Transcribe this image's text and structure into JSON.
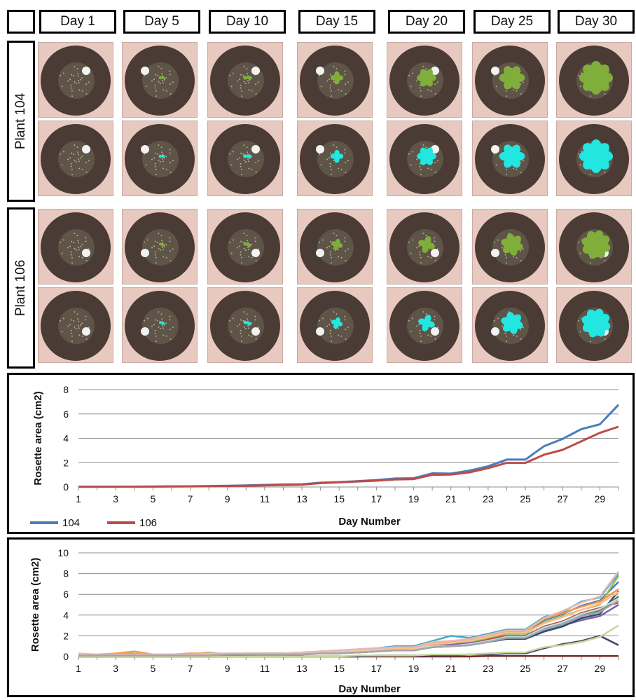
{
  "grid": {
    "days": [
      "Day 1",
      "Day 5",
      "Day 10",
      "Day 15",
      "Day 20",
      "Day 25",
      "Day 30"
    ],
    "plants": [
      {
        "label": "Plant 104"
      },
      {
        "label": "Plant 106"
      }
    ],
    "growth": [
      0.0,
      0.04,
      0.12,
      0.28,
      0.5,
      0.72,
      1.0
    ],
    "rgb_color": "#7fae3a",
    "fluor_color": "#22e6e0"
  },
  "chart_data": [
    {
      "type": "line",
      "xlabel": "Day Number",
      "ylabel": "Rosette area (cm2)",
      "ylim": [
        0,
        8
      ],
      "yticks": [
        0,
        2,
        4,
        6,
        8
      ],
      "xticks": [
        1,
        3,
        5,
        7,
        9,
        11,
        13,
        15,
        17,
        19,
        21,
        23,
        25,
        27,
        29
      ],
      "x": [
        1,
        2,
        3,
        4,
        5,
        6,
        7,
        8,
        9,
        10,
        11,
        12,
        13,
        14,
        15,
        16,
        17,
        18,
        19,
        20,
        21,
        22,
        23,
        24,
        25,
        26,
        27,
        28,
        29,
        30
      ],
      "series": [
        {
          "name": "104",
          "color": "#4a7ebb",
          "values": [
            0.02,
            0.02,
            0.03,
            0.03,
            0.04,
            0.05,
            0.06,
            0.08,
            0.1,
            0.13,
            0.17,
            0.21,
            0.22,
            0.35,
            0.4,
            0.48,
            0.57,
            0.7,
            0.72,
            1.12,
            1.1,
            1.35,
            1.7,
            2.25,
            2.25,
            3.35,
            3.95,
            4.75,
            5.15,
            6.75
          ]
        },
        {
          "name": "106",
          "color": "#be4b48",
          "values": [
            0.02,
            0.02,
            0.02,
            0.03,
            0.03,
            0.04,
            0.05,
            0.06,
            0.08,
            0.1,
            0.13,
            0.16,
            0.19,
            0.32,
            0.38,
            0.45,
            0.52,
            0.62,
            0.65,
            1.0,
            1.02,
            1.2,
            1.55,
            1.98,
            1.98,
            2.65,
            3.05,
            3.75,
            4.45,
            4.95
          ]
        }
      ],
      "legend": "bottom-left"
    },
    {
      "type": "line",
      "xlabel": "Day Number",
      "ylabel": "Rosette area (cm2)",
      "ylim": [
        0,
        10
      ],
      "yticks": [
        0,
        2,
        4,
        6,
        8,
        10
      ],
      "xticks": [
        1,
        3,
        5,
        7,
        9,
        11,
        13,
        15,
        17,
        19,
        21,
        23,
        25,
        27,
        29
      ],
      "x": [
        1,
        2,
        3,
        4,
        5,
        6,
        7,
        8,
        9,
        10,
        11,
        12,
        13,
        14,
        15,
        16,
        17,
        18,
        19,
        20,
        21,
        22,
        23,
        24,
        25,
        26,
        27,
        28,
        29,
        30
      ],
      "series": [
        {
          "color": "#4a7ebb",
          "values": [
            0.3,
            0.1,
            0.2,
            0.1,
            0.1,
            0.1,
            0.15,
            0.2,
            0.15,
            0.2,
            0.25,
            0.3,
            0.3,
            0.4,
            0.45,
            0.55,
            0.7,
            0.85,
            0.9,
            1.3,
            1.5,
            1.6,
            1.9,
            2.3,
            2.3,
            3.5,
            4.1,
            4.9,
            5.4,
            7.2
          ]
        },
        {
          "color": "#be4b48",
          "values": [
            0.1,
            0.05,
            0.1,
            0.05,
            0.05,
            0.1,
            0.1,
            0.1,
            0.15,
            0.15,
            0.2,
            0.2,
            0.25,
            0.35,
            0.4,
            0.5,
            0.6,
            0.7,
            0.75,
            1.1,
            1.2,
            1.3,
            1.7,
            2.0,
            2.0,
            2.9,
            3.4,
            4.2,
            4.7,
            5.2
          ]
        },
        {
          "color": "#98b954",
          "values": [
            0.0,
            0.1,
            0.2,
            0.3,
            0.1,
            0.15,
            0.2,
            0.4,
            0.2,
            0.2,
            0.2,
            0.2,
            0.3,
            0.3,
            0.4,
            0.5,
            0.6,
            0.7,
            0.8,
            1.0,
            1.1,
            1.4,
            1.8,
            2.2,
            2.2,
            3.3,
            3.9,
            4.5,
            5.0,
            7.8
          ]
        },
        {
          "color": "#7d60a0",
          "values": [
            0.1,
            0.1,
            0.1,
            0.1,
            0.1,
            0.1,
            0.2,
            0.2,
            0.2,
            0.3,
            0.3,
            0.3,
            0.3,
            0.4,
            0.5,
            0.6,
            0.7,
            0.8,
            0.9,
            1.2,
            1.2,
            1.3,
            1.5,
            1.8,
            1.8,
            2.5,
            3.0,
            3.5,
            3.9,
            5.0
          ]
        },
        {
          "color": "#46aac5",
          "values": [
            0.2,
            0.1,
            0.2,
            0.1,
            0.1,
            0.2,
            0.2,
            0.2,
            0.2,
            0.3,
            0.3,
            0.3,
            0.3,
            0.5,
            0.6,
            0.7,
            0.8,
            1.0,
            1.0,
            1.5,
            2.0,
            1.8,
            2.2,
            2.6,
            2.6,
            3.8,
            4.3,
            5.3,
            5.7,
            8.0
          ]
        },
        {
          "color": "#f79646",
          "values": [
            0.2,
            0.2,
            0.3,
            0.5,
            0.2,
            0.2,
            0.3,
            0.3,
            0.2,
            0.3,
            0.3,
            0.3,
            0.4,
            0.5,
            0.5,
            0.6,
            0.7,
            0.8,
            0.9,
            1.3,
            1.4,
            1.6,
            2.0,
            2.4,
            2.4,
            3.6,
            4.2,
            4.8,
            5.3,
            6.5
          ]
        },
        {
          "color": "#2c4d75",
          "values": [
            0.0,
            0.0,
            0.1,
            0.1,
            0.1,
            0.1,
            0.1,
            0.1,
            0.1,
            0.2,
            0.2,
            0.2,
            0.2,
            0.3,
            0.3,
            0.4,
            0.5,
            0.6,
            0.6,
            0.9,
            1.0,
            1.1,
            1.4,
            1.7,
            1.7,
            2.4,
            2.9,
            3.7,
            4.1,
            6.3
          ]
        },
        {
          "color": "#772c2a",
          "values": [
            0.0,
            0.0,
            0.0,
            0.0,
            0.0,
            0.0,
            0.0,
            0.0,
            0.0,
            0.0,
            0.0,
            0.0,
            0.0,
            0.0,
            0.0,
            0.0,
            0.0,
            0.0,
            0.0,
            0.0,
            0.0,
            0.0,
            0.05,
            0.05,
            0.05,
            0.05,
            0.05,
            0.05,
            0.05,
            0.05
          ]
        },
        {
          "color": "#5f7530",
          "values": [
            0.1,
            0.1,
            0.1,
            0.1,
            0.1,
            0.1,
            0.1,
            0.2,
            0.2,
            0.2,
            0.2,
            0.2,
            0.2,
            0.3,
            0.3,
            0.4,
            0.5,
            0.6,
            0.6,
            0.9,
            1.0,
            1.2,
            1.5,
            1.9,
            1.9,
            2.7,
            3.2,
            4.0,
            4.4,
            5.8
          ]
        },
        {
          "color": "#4d3b62",
          "values": [
            0.0,
            0.0,
            0.0,
            0.0,
            0.0,
            0.0,
            0.0,
            0.0,
            0.0,
            0.0,
            0.0,
            0.0,
            0.0,
            0.0,
            0.0,
            0.0,
            0.1,
            0.1,
            0.1,
            0.1,
            0.1,
            0.2,
            0.2,
            0.3,
            0.3,
            0.8,
            1.2,
            1.5,
            2.0,
            1.1
          ]
        },
        {
          "color": "#b6dde8",
          "values": [
            0.1,
            0.1,
            0.1,
            0.1,
            0.1,
            0.1,
            0.1,
            0.2,
            0.2,
            0.2,
            0.2,
            0.2,
            0.3,
            0.4,
            0.4,
            0.5,
            0.6,
            0.7,
            0.7,
            1.0,
            1.0,
            1.2,
            1.5,
            1.9,
            1.9,
            2.8,
            3.3,
            4.1,
            4.6,
            5.6
          ]
        },
        {
          "color": "#fac08f",
          "values": [
            0.2,
            0.2,
            0.2,
            0.2,
            0.2,
            0.2,
            0.2,
            0.2,
            0.3,
            0.3,
            0.3,
            0.3,
            0.3,
            0.4,
            0.5,
            0.6,
            0.7,
            0.8,
            0.8,
            1.2,
            1.3,
            1.5,
            1.9,
            2.3,
            2.3,
            3.2,
            3.8,
            4.5,
            5.1,
            6.2
          ]
        },
        {
          "color": "#c4d79b",
          "values": [
            0.0,
            0.0,
            0.0,
            0.0,
            0.0,
            0.0,
            0.0,
            0.0,
            0.0,
            0.0,
            0.0,
            0.0,
            0.0,
            0.0,
            0.0,
            0.1,
            0.1,
            0.1,
            0.1,
            0.2,
            0.2,
            0.2,
            0.3,
            0.4,
            0.4,
            0.9,
            1.1,
            1.4,
            1.9,
            3.0
          ]
        },
        {
          "color": "#e6b9b8",
          "values": [
            0.3,
            0.2,
            0.2,
            0.2,
            0.2,
            0.2,
            0.2,
            0.3,
            0.3,
            0.3,
            0.3,
            0.3,
            0.4,
            0.5,
            0.6,
            0.7,
            0.8,
            0.9,
            0.9,
            1.4,
            1.5,
            1.7,
            2.1,
            2.5,
            2.5,
            3.7,
            4.4,
            5.2,
            5.8,
            8.2
          ]
        },
        {
          "color": "#a5a5a5",
          "values": [
            0.1,
            0.1,
            0.1,
            0.1,
            0.1,
            0.1,
            0.1,
            0.1,
            0.2,
            0.2,
            0.2,
            0.2,
            0.2,
            0.3,
            0.3,
            0.4,
            0.5,
            0.6,
            0.6,
            0.9,
            1.0,
            1.1,
            1.4,
            1.8,
            1.8,
            2.6,
            3.1,
            3.9,
            4.3,
            5.4
          ]
        }
      ]
    }
  ]
}
